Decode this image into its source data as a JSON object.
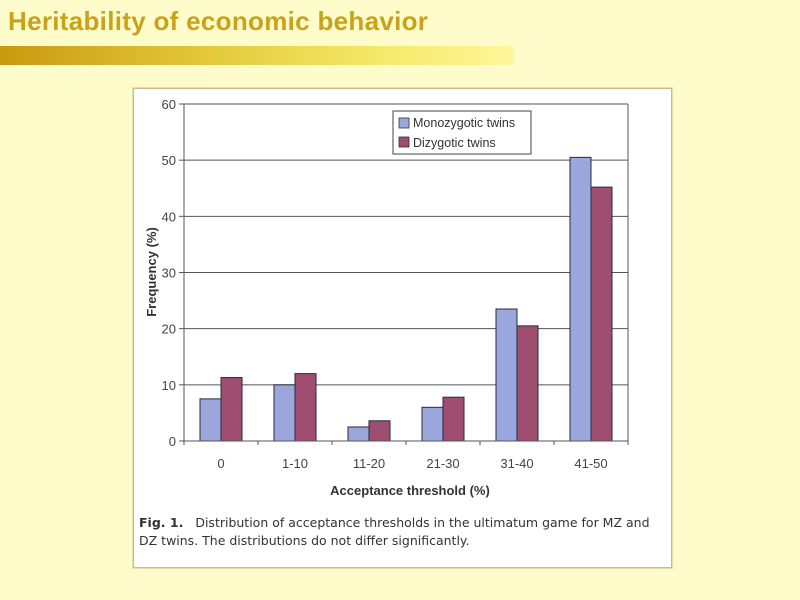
{
  "slide": {
    "title": "Heritability of economic behavior"
  },
  "caption": {
    "label": "Fig. 1.",
    "text": "Distribution of acceptance thresholds in the ultimatum game for MZ and DZ twins. The distributions do not differ significantly."
  },
  "chart_data": {
    "type": "bar",
    "title": "",
    "xlabel": "Acceptance threshold (%)",
    "ylabel": "Frequency (%)",
    "ylim": [
      0,
      60
    ],
    "yticks": [
      0,
      10,
      20,
      30,
      40,
      50,
      60
    ],
    "grid": true,
    "legend_position": "top-right",
    "categories": [
      "0",
      "1-10",
      "11-20",
      "21-30",
      "31-40",
      "41-50"
    ],
    "series": [
      {
        "name": "Monozygotic twins",
        "color": "#9aa6dc",
        "values": [
          7.5,
          10,
          2.5,
          6,
          23.5,
          50.5
        ]
      },
      {
        "name": "Dizygotic twins",
        "color": "#a04d72",
        "values": [
          11.3,
          12,
          3.6,
          7.8,
          20.5,
          45.2
        ]
      }
    ]
  }
}
